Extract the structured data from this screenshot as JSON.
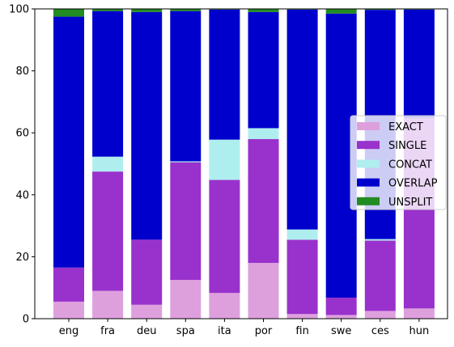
{
  "chart_data": {
    "type": "bar",
    "stacked": true,
    "categories": [
      "eng",
      "fra",
      "deu",
      "spa",
      "ita",
      "por",
      "fin",
      "swe",
      "ces",
      "hun"
    ],
    "ylim": [
      0,
      100
    ],
    "yticks": [
      0,
      20,
      40,
      60,
      80,
      100
    ],
    "legend_position": "center-right",
    "series": [
      {
        "name": "EXACT",
        "color": "#dda0dd",
        "values": [
          5.5,
          9.0,
          4.5,
          12.5,
          8.3,
          18.0,
          1.5,
          1.2,
          2.5,
          3.3
        ]
      },
      {
        "name": "SINGLE",
        "color": "#9932cc",
        "values": [
          11.0,
          38.5,
          21.0,
          38.0,
          36.5,
          40.0,
          24.0,
          5.6,
          22.7,
          61.5
        ]
      },
      {
        "name": "CONCAT",
        "color": "#afeeee",
        "values": [
          0.0,
          4.8,
          0.0,
          0.3,
          13.0,
          3.5,
          3.3,
          0.0,
          0.5,
          0.0
        ]
      },
      {
        "name": "OVERLAP",
        "color": "#0000cd",
        "values": [
          81.0,
          47.0,
          73.5,
          48.5,
          42.0,
          37.5,
          71.0,
          91.7,
          74.0,
          35.0
        ]
      },
      {
        "name": "UNSPLIT",
        "color": "#228b22",
        "values": [
          2.5,
          0.7,
          1.0,
          0.7,
          0.2,
          1.0,
          0.2,
          1.5,
          0.3,
          0.2
        ]
      }
    ]
  }
}
